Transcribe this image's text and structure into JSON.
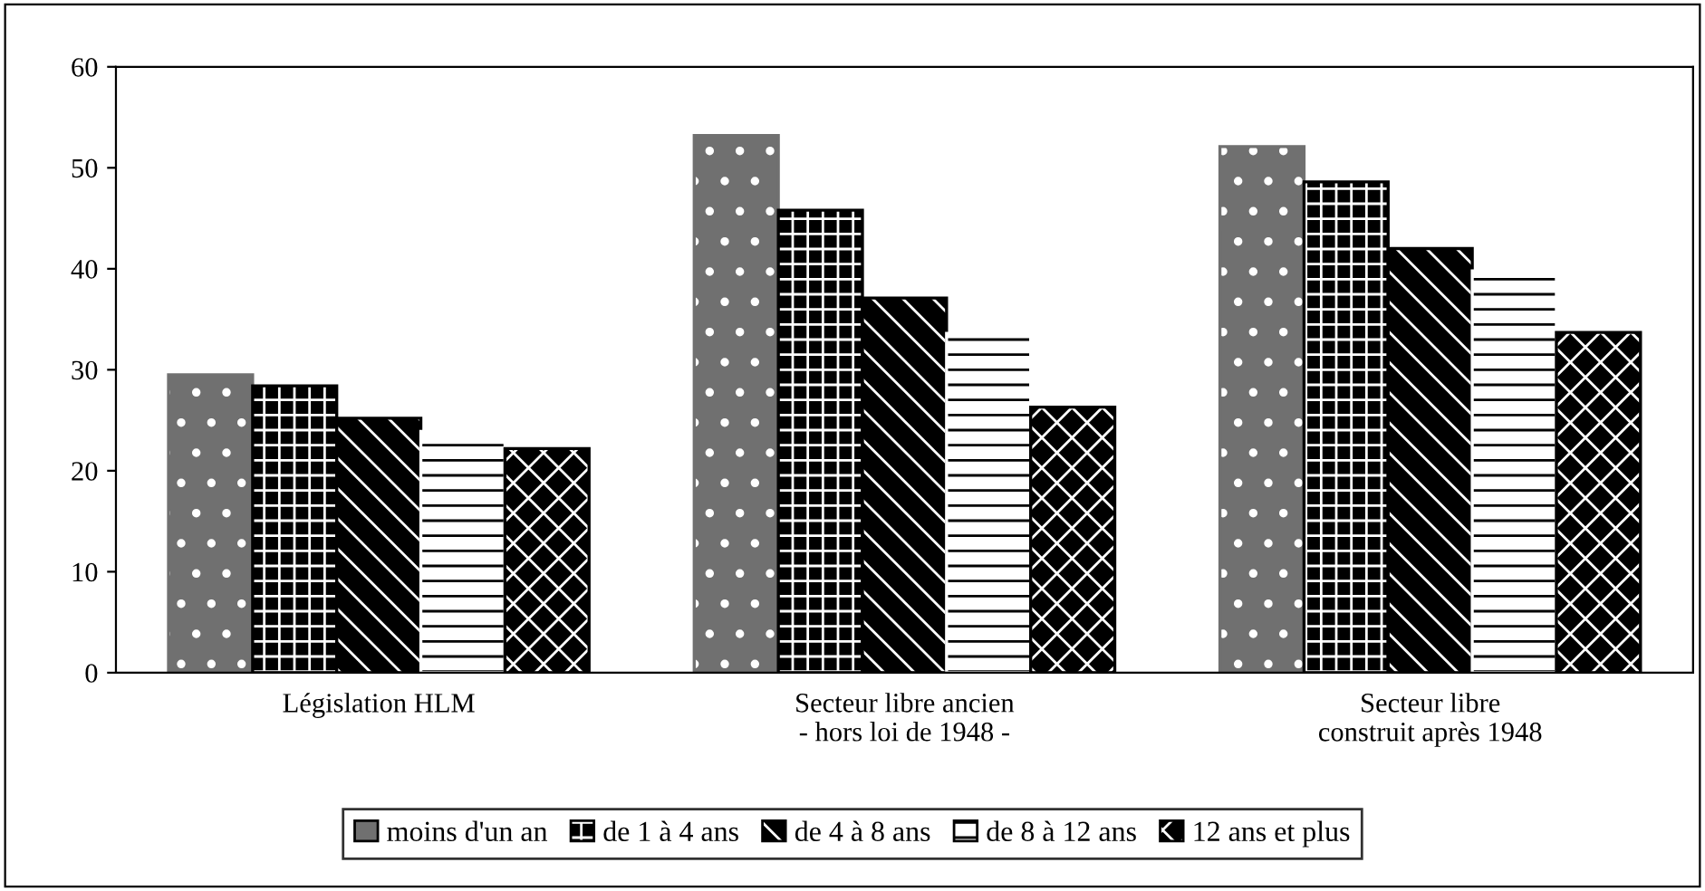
{
  "chart_data": {
    "type": "bar",
    "categories": [
      "Législation HLM",
      "Secteur libre ancien\n- hors loi de 1948 -",
      "Secteur libre\nconstruit après 1948"
    ],
    "series": [
      {
        "name": "moins d'un an",
        "color": "#707070",
        "values": [
          29.5,
          53.2,
          52.1
        ]
      },
      {
        "name": "de 1 à 4 ans",
        "color": "#000000",
        "values": [
          28.4,
          45.8,
          48.6
        ]
      },
      {
        "name": "de 4 à 8 ans",
        "color": "#000000",
        "values": [
          25.2,
          37.1,
          42.0
        ]
      },
      {
        "name": "de 8 à 12 ans",
        "color": "#ffffff",
        "values": [
          23.9,
          33.6,
          39.8
        ]
      },
      {
        "name": "12 ans et plus",
        "color": "#000000",
        "values": [
          22.2,
          26.3,
          33.7
        ]
      }
    ],
    "ylim": [
      0,
      60
    ],
    "yticks": [
      0,
      10,
      20,
      30,
      40,
      50,
      60
    ],
    "grid": false,
    "legend": "bottom"
  }
}
